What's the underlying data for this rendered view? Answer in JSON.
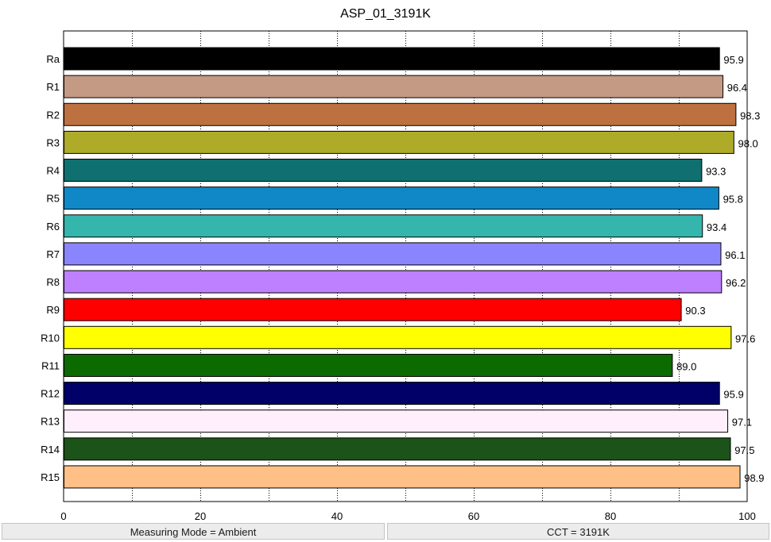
{
  "chart_data": {
    "type": "bar",
    "orientation": "horizontal",
    "title": "ASP_01_3191K",
    "xlim": [
      0,
      100
    ],
    "x_ticks": [
      "0",
      "20",
      "40",
      "60",
      "80",
      "100"
    ],
    "grid": "vertical dotted",
    "categories": [
      "Ra",
      "R1",
      "R2",
      "R3",
      "R4",
      "R5",
      "R6",
      "R7",
      "R8",
      "R9",
      "R10",
      "R11",
      "R12",
      "R13",
      "R14",
      "R15"
    ],
    "values": [
      95.9,
      96.4,
      98.3,
      98.0,
      93.3,
      95.8,
      93.4,
      96.1,
      96.2,
      90.3,
      97.6,
      89.0,
      95.9,
      97.1,
      97.5,
      98.9
    ],
    "value_labels": [
      "95.9",
      "96.4",
      "98.3",
      "98.0",
      "93.3",
      "95.8",
      "93.4",
      "96.1",
      "96.2",
      "90.3",
      "97.6",
      "89.0",
      "95.9",
      "97.1",
      "97.5",
      "98.9"
    ],
    "colors": [
      "#000000",
      "#c49a85",
      "#bd7040",
      "#aeab29",
      "#107070",
      "#1088c7",
      "#35b6ad",
      "#8b85fd",
      "#bf80ff",
      "#ff0000",
      "#ffff00",
      "#0b6b00",
      "#000068",
      "#ffeefc",
      "#1b5318",
      "#ffc088"
    ]
  },
  "status_bar": {
    "measuring_mode": "Measuring Mode = Ambient",
    "cct": "CCT = 3191K"
  }
}
